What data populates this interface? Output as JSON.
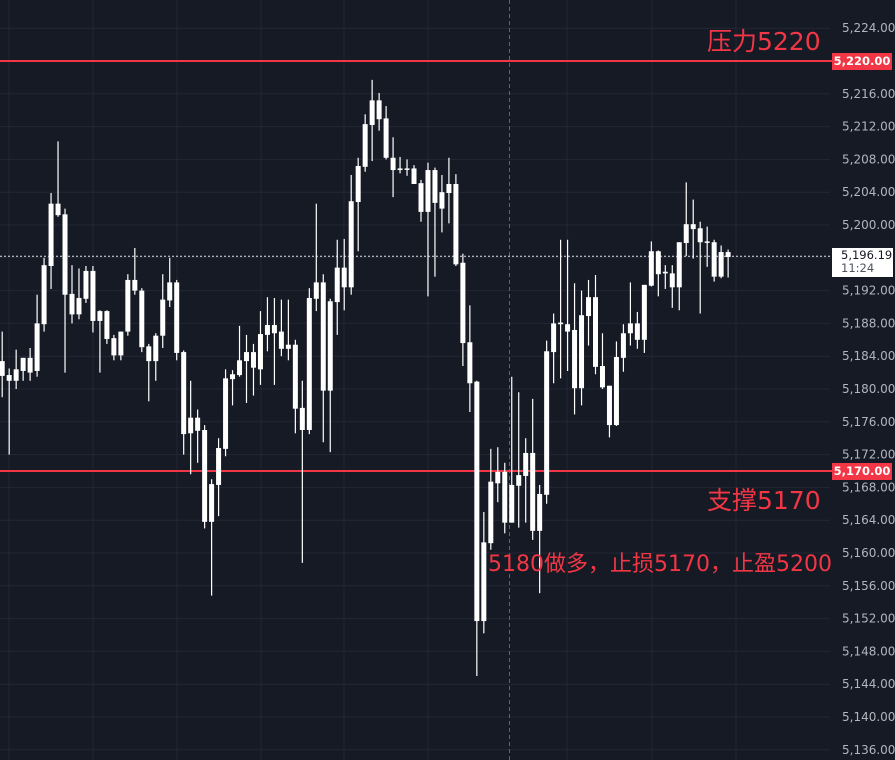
{
  "chart_data": {
    "type": "candlestick",
    "ylim": [
      5134,
      5226
    ],
    "grid": true,
    "candle_color": "#ffffff",
    "tick_values": [
      5224,
      5216,
      5212,
      5208,
      5204,
      5200,
      5192,
      5188,
      5184,
      5180,
      5176,
      5172,
      5168,
      5164,
      5160,
      5156,
      5152,
      5148,
      5144,
      5140,
      5136
    ],
    "tick_labels": [
      "5,224.00",
      "5,216.00",
      "5,212.00",
      "5,208.00",
      "5,204.00",
      "5,200.00",
      "5,192.00",
      "5,188.00",
      "5,184.00",
      "5,180.00",
      "5,176.00",
      "5,172.00",
      "5,168.00",
      "5,164.00",
      "5,160.00",
      "5,156.00",
      "5,152.00",
      "5,148.00",
      "5,144.00",
      "5,140.00",
      "5,136.00"
    ],
    "ohlc": [
      [
        5181.6,
        5187,
        5179,
        5183.4
      ],
      [
        5181,
        5182.5,
        5172,
        5181.7
      ],
      [
        5181,
        5184.8,
        5180,
        5182.4
      ],
      [
        5182.2,
        5183.8,
        5181,
        5183.8
      ],
      [
        5182,
        5185,
        5181,
        5183.8
      ],
      [
        5182.2,
        5191.5,
        5181.5,
        5188
      ],
      [
        5187.9,
        5196,
        5187,
        5195.1
      ],
      [
        5195,
        5203.9,
        5192.2,
        5202.6
      ],
      [
        5201.2,
        5210.2,
        5201,
        5202.6
      ],
      [
        5191.5,
        5202,
        5182,
        5201.3
      ],
      [
        5189.1,
        5195.1,
        5188,
        5191.6
      ],
      [
        5189.1,
        5194.7,
        5188.5,
        5191.1
      ],
      [
        5191,
        5195,
        5190.5,
        5194.4
      ],
      [
        5188.3,
        5195,
        5186.9,
        5194.4
      ],
      [
        5188.3,
        5189.6,
        5182,
        5189.5
      ],
      [
        5186.1,
        5189.6,
        5185.5,
        5189.5
      ],
      [
        5184.1,
        5186.6,
        5183.5,
        5186.2
      ],
      [
        5184.1,
        5187,
        5183.5,
        5187
      ],
      [
        5187,
        5194,
        5186.5,
        5193.3
      ],
      [
        5192,
        5197.2,
        5191.5,
        5193.3
      ],
      [
        5185.1,
        5192.3,
        5184.5,
        5192
      ],
      [
        5183.4,
        5185.5,
        5178.5,
        5185.2
      ],
      [
        5183.4,
        5186.8,
        5181,
        5186.5
      ],
      [
        5186.5,
        5194,
        5185,
        5190.9
      ],
      [
        5190.8,
        5196,
        5190,
        5193
      ],
      [
        5184.4,
        5193.3,
        5183.5,
        5193
      ],
      [
        5174.5,
        5184.7,
        5172,
        5184.5
      ],
      [
        5174.6,
        5181,
        5169.6,
        5176.5
      ],
      [
        5174.9,
        5177.5,
        5171,
        5176.5
      ],
      [
        5163.8,
        5175.6,
        5163,
        5175
      ],
      [
        5163.8,
        5169,
        5154.8,
        5168.4
      ],
      [
        5168.3,
        5174,
        5164.5,
        5172.8
      ],
      [
        5172.7,
        5182.4,
        5171.8,
        5181.3
      ],
      [
        5181.2,
        5182.3,
        5178,
        5181.8
      ],
      [
        5181.7,
        5187.7,
        5181.5,
        5183.5
      ],
      [
        5183.4,
        5186.6,
        5178.3,
        5184.5
      ],
      [
        5182.6,
        5185.5,
        5179.2,
        5184.5
      ],
      [
        5182.4,
        5189.5,
        5180.5,
        5186.7
      ],
      [
        5186.6,
        5191.2,
        5184.6,
        5187.8
      ],
      [
        5186.8,
        5191.1,
        5180.5,
        5187.8
      ],
      [
        5184.9,
        5190.9,
        5184,
        5187
      ],
      [
        5184.9,
        5190.9,
        5183.5,
        5185.4
      ],
      [
        5177.6,
        5186,
        5174.6,
        5185.4
      ],
      [
        5175,
        5181,
        5158.8,
        5177.7
      ],
      [
        5175,
        5192.3,
        5174.5,
        5191.1
      ],
      [
        5191,
        5202.6,
        5189.5,
        5193
      ],
      [
        5179.8,
        5194,
        5173.5,
        5193
      ],
      [
        5179.8,
        5191,
        5172.3,
        5190.7
      ],
      [
        5190.6,
        5198.2,
        5186.6,
        5194.8
      ],
      [
        5192.4,
        5198.3,
        5189.6,
        5194.8
      ],
      [
        5192.4,
        5206.1,
        5191.5,
        5202.9
      ],
      [
        5202.8,
        5208.2,
        5196.8,
        5207.2
      ],
      [
        5207.1,
        5213.5,
        5206.5,
        5212.3
      ],
      [
        5212.2,
        5217.7,
        5207.8,
        5215.2
      ],
      [
        5212.9,
        5216.1,
        5211.5,
        5215.2
      ],
      [
        5208.2,
        5214.5,
        5208,
        5213
      ],
      [
        5206.7,
        5210.7,
        5203.4,
        5208.2
      ],
      [
        5206.7,
        5208.3,
        5206.3,
        5206.9
      ],
      [
        5206.8,
        5208,
        5206,
        5206.9
      ],
      [
        5205,
        5207.3,
        5205,
        5206.9
      ],
      [
        5201.6,
        5205.5,
        5200.4,
        5205.1
      ],
      [
        5201.6,
        5207.6,
        5191.3,
        5206.7
      ],
      [
        5202.7,
        5207,
        5193.7,
        5206.7
      ],
      [
        5202,
        5206.1,
        5199.1,
        5204
      ],
      [
        5203.9,
        5208.2,
        5200.2,
        5205
      ],
      [
        5195.2,
        5206.2,
        5195,
        5205
      ],
      [
        5185.6,
        5196.5,
        5182.8,
        5195.4
      ],
      [
        5180.7,
        5190.2,
        5177.2,
        5185.7
      ],
      [
        5151.7,
        5181,
        5145,
        5180.9
      ],
      [
        5151.7,
        5165,
        5150.2,
        5161.3
      ],
      [
        5161.2,
        5172.7,
        5160.4,
        5168.7
      ],
      [
        5168.5,
        5172.9,
        5166.2,
        5169.9
      ],
      [
        5163.7,
        5171,
        5162.4,
        5169.9
      ],
      [
        5163.7,
        5181.5,
        5163.7,
        5168.3
      ],
      [
        5168.2,
        5179.6,
        5163.1,
        5169.5
      ],
      [
        5169.4,
        5174,
        5163.7,
        5172.2
      ],
      [
        5162.7,
        5178.8,
        5161.6,
        5172.2
      ],
      [
        5162.7,
        5168.3,
        5155.1,
        5167.2
      ],
      [
        5167.1,
        5185.9,
        5166,
        5184.6
      ],
      [
        5184.5,
        5189.2,
        5180.7,
        5188
      ],
      [
        5187.9,
        5198.2,
        5181.3,
        5188.1
      ],
      [
        5187,
        5198.2,
        5182.2,
        5187.9
      ],
      [
        5180.1,
        5192.9,
        5176.9,
        5187.2
      ],
      [
        5180.1,
        5192,
        5178,
        5189
      ],
      [
        5188.9,
        5193.3,
        5185.3,
        5191.2
      ],
      [
        5182.7,
        5193.9,
        5181.8,
        5191.2
      ],
      [
        5180.2,
        5186.8,
        5180,
        5182.8
      ],
      [
        5175.6,
        5180.4,
        5174.1,
        5180.4
      ],
      [
        5175.6,
        5185.8,
        5175.5,
        5183.9
      ],
      [
        5183.8,
        5187.9,
        5182.1,
        5186.8
      ],
      [
        5186.8,
        5193,
        5185.3,
        5188
      ],
      [
        5186,
        5189.4,
        5184.9,
        5188
      ],
      [
        5186,
        5192.7,
        5184.4,
        5192.7
      ],
      [
        5192.6,
        5198,
        5192.5,
        5196.8
      ],
      [
        5194,
        5196.9,
        5191.3,
        5196.8
      ],
      [
        5194.1,
        5195.1,
        5192.2,
        5194.3
      ],
      [
        5192.4,
        5195.1,
        5189.9,
        5194.1
      ],
      [
        5192.4,
        5197.9,
        5189.6,
        5197.9
      ],
      [
        5197.8,
        5205.2,
        5196.2,
        5200.1
      ],
      [
        5199.5,
        5203.1,
        5195.9,
        5200.1
      ],
      [
        5197.9,
        5200.4,
        5189.2,
        5199.6
      ],
      [
        5198,
        5199.8,
        5194.9,
        5198
      ],
      [
        5193.7,
        5198.2,
        5193.1,
        5197.9
      ],
      [
        5193.7,
        5197.5,
        5193.5,
        5196.7
      ],
      [
        5196.1,
        5197,
        5193.6,
        5196.7
      ]
    ],
    "levels": [
      {
        "value": 5220,
        "label": "5,220.00",
        "text": "压力5220"
      },
      {
        "value": 5170,
        "label": "5,170.00",
        "text": "支撑5170"
      }
    ],
    "level_color": "#f23645",
    "current_price": {
      "value": 5196.19,
      "label": "5,196.19",
      "countdown": "11:24"
    },
    "annotation": "5180做多，止损5170，止盈5200",
    "crosshair_color": "#2962ff"
  }
}
